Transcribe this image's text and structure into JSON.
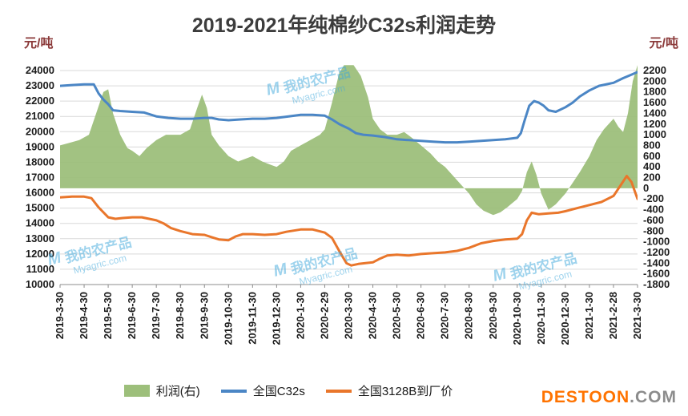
{
  "watermark": {
    "logo": "M",
    "brand": "我的农产品",
    "domain": "Myagric.com",
    "color": "#3fa8dc"
  },
  "footer_logo": {
    "name": "DESTOON",
    "suffix": ".COM",
    "name_color": "#ff7300",
    "suffix_color": "#8c8c8c"
  },
  "chart_data": {
    "type": "combo (area + line)",
    "title": "2019-2021年纯棉纱C32s利润走势",
    "grid": true,
    "legend_position": "bottom",
    "left_axis": {
      "unit": "元/吨",
      "min": 10000,
      "max": 24000,
      "step": 1000
    },
    "right_axis": {
      "unit": "元/吨",
      "min": -1800,
      "max": 2200,
      "step": 200
    },
    "x_axis": {
      "months": 24,
      "tick_labels": [
        "2019-3-30",
        "2019-4-30",
        "2019-5-30",
        "2019-6-30",
        "2019-7-30",
        "2019-8-30",
        "2019-9-30",
        "2019-10-30",
        "2019-11-30",
        "2019-12-30",
        "2020-1-30",
        "2020-2-29",
        "2020-3-30",
        "2020-4-30",
        "2020-5-30",
        "2020-6-30",
        "2020-7-30",
        "2020-8-30",
        "2020-9-30",
        "2020-10-30",
        "2020-11-30",
        "2020-12-30",
        "2021-1-30",
        "2021-2-28",
        "2021-3-30"
      ]
    },
    "series": [
      {
        "name": "利润(右)",
        "type": "area",
        "axis": "right",
        "color": "#9dbf7b",
        "points": [
          [
            0,
            800
          ],
          [
            0.4,
            850
          ],
          [
            0.8,
            900
          ],
          [
            1.2,
            1000
          ],
          [
            1.5,
            1400
          ],
          [
            1.8,
            1800
          ],
          [
            2,
            1850
          ],
          [
            2.2,
            1400
          ],
          [
            2.5,
            1000
          ],
          [
            2.8,
            750
          ],
          [
            3,
            700
          ],
          [
            3.3,
            600
          ],
          [
            3.6,
            750
          ],
          [
            4,
            900
          ],
          [
            4.4,
            1000
          ],
          [
            5,
            1000
          ],
          [
            5.4,
            1100
          ],
          [
            5.7,
            1500
          ],
          [
            5.9,
            1750
          ],
          [
            6.1,
            1500
          ],
          [
            6.3,
            1000
          ],
          [
            6.6,
            800
          ],
          [
            7,
            600
          ],
          [
            7.4,
            500
          ],
          [
            7.7,
            550
          ],
          [
            8,
            600
          ],
          [
            8.4,
            500
          ],
          [
            8.8,
            430
          ],
          [
            9,
            400
          ],
          [
            9.3,
            500
          ],
          [
            9.6,
            700
          ],
          [
            10,
            800
          ],
          [
            10.4,
            900
          ],
          [
            10.8,
            1000
          ],
          [
            11,
            1100
          ],
          [
            11.3,
            1600
          ],
          [
            11.6,
            2150
          ],
          [
            11.8,
            2300
          ],
          [
            12.2,
            2300
          ],
          [
            12.5,
            2100
          ],
          [
            12.8,
            1700
          ],
          [
            13,
            1300
          ],
          [
            13.3,
            1100
          ],
          [
            13.6,
            1000
          ],
          [
            14,
            1000
          ],
          [
            14.3,
            1050
          ],
          [
            14.6,
            950
          ],
          [
            15,
            800
          ],
          [
            15.4,
            650
          ],
          [
            15.7,
            500
          ],
          [
            16,
            400
          ],
          [
            16.3,
            250
          ],
          [
            16.6,
            100
          ],
          [
            17,
            -100
          ],
          [
            17.3,
            -300
          ],
          [
            17.6,
            -420
          ],
          [
            18,
            -500
          ],
          [
            18.3,
            -450
          ],
          [
            18.6,
            -350
          ],
          [
            19,
            -200
          ],
          [
            19.2,
            -50
          ],
          [
            19.4,
            300
          ],
          [
            19.6,
            500
          ],
          [
            19.8,
            250
          ],
          [
            20,
            -100
          ],
          [
            20.3,
            -400
          ],
          [
            20.6,
            -300
          ],
          [
            21,
            -100
          ],
          [
            21.3,
            100
          ],
          [
            21.6,
            300
          ],
          [
            22,
            600
          ],
          [
            22.3,
            900
          ],
          [
            22.6,
            1100
          ],
          [
            23,
            1300
          ],
          [
            23.2,
            1150
          ],
          [
            23.4,
            1050
          ],
          [
            23.6,
            1400
          ],
          [
            23.8,
            2000
          ],
          [
            24,
            2300
          ]
        ]
      },
      {
        "name": "全国C32s",
        "type": "line",
        "axis": "left",
        "color": "#4b86c5",
        "points": [
          [
            0,
            23000
          ],
          [
            0.5,
            23050
          ],
          [
            1,
            23100
          ],
          [
            1.4,
            23100
          ],
          [
            1.6,
            22500
          ],
          [
            1.8,
            22100
          ],
          [
            2,
            21800
          ],
          [
            2.2,
            21400
          ],
          [
            2.5,
            21350
          ],
          [
            3,
            21300
          ],
          [
            3.5,
            21250
          ],
          [
            3.8,
            21100
          ],
          [
            4,
            21000
          ],
          [
            4.5,
            20900
          ],
          [
            5,
            20850
          ],
          [
            5.5,
            20850
          ],
          [
            6,
            20900
          ],
          [
            6.3,
            20900
          ],
          [
            6.6,
            20800
          ],
          [
            7,
            20750
          ],
          [
            7.5,
            20800
          ],
          [
            8,
            20850
          ],
          [
            8.5,
            20850
          ],
          [
            9,
            20900
          ],
          [
            9.5,
            21000
          ],
          [
            10,
            21100
          ],
          [
            10.5,
            21100
          ],
          [
            11,
            21050
          ],
          [
            11.3,
            20800
          ],
          [
            11.6,
            20500
          ],
          [
            12,
            20200
          ],
          [
            12.3,
            19900
          ],
          [
            12.6,
            19800
          ],
          [
            13,
            19750
          ],
          [
            13.5,
            19650
          ],
          [
            14,
            19500
          ],
          [
            14.5,
            19450
          ],
          [
            15,
            19400
          ],
          [
            15.5,
            19350
          ],
          [
            16,
            19300
          ],
          [
            16.5,
            19300
          ],
          [
            17,
            19350
          ],
          [
            17.5,
            19400
          ],
          [
            18,
            19450
          ],
          [
            18.5,
            19500
          ],
          [
            19,
            19600
          ],
          [
            19.15,
            19900
          ],
          [
            19.3,
            20700
          ],
          [
            19.5,
            21700
          ],
          [
            19.7,
            22000
          ],
          [
            19.9,
            21900
          ],
          [
            20.1,
            21700
          ],
          [
            20.3,
            21400
          ],
          [
            20.6,
            21300
          ],
          [
            21,
            21600
          ],
          [
            21.3,
            21900
          ],
          [
            21.6,
            22300
          ],
          [
            22,
            22700
          ],
          [
            22.4,
            23000
          ],
          [
            23,
            23200
          ],
          [
            23.4,
            23500
          ],
          [
            23.7,
            23700
          ],
          [
            24,
            23900
          ]
        ]
      },
      {
        "name": "全国3128B到厂价",
        "type": "line",
        "axis": "left",
        "color": "#e9762b",
        "points": [
          [
            0,
            15700
          ],
          [
            0.5,
            15750
          ],
          [
            1,
            15750
          ],
          [
            1.3,
            15650
          ],
          [
            1.6,
            15050
          ],
          [
            2,
            14400
          ],
          [
            2.3,
            14300
          ],
          [
            2.6,
            14350
          ],
          [
            3,
            14400
          ],
          [
            3.4,
            14400
          ],
          [
            3.7,
            14300
          ],
          [
            4,
            14200
          ],
          [
            4.3,
            14000
          ],
          [
            4.6,
            13700
          ],
          [
            5,
            13500
          ],
          [
            5.5,
            13300
          ],
          [
            6,
            13250
          ],
          [
            6.3,
            13100
          ],
          [
            6.6,
            12950
          ],
          [
            7,
            12900
          ],
          [
            7.3,
            13150
          ],
          [
            7.6,
            13300
          ],
          [
            8,
            13300
          ],
          [
            8.5,
            13250
          ],
          [
            9,
            13300
          ],
          [
            9.4,
            13450
          ],
          [
            10,
            13600
          ],
          [
            10.5,
            13600
          ],
          [
            11,
            13400
          ],
          [
            11.3,
            13050
          ],
          [
            11.6,
            12200
          ],
          [
            11.9,
            11400
          ],
          [
            12.1,
            11250
          ],
          [
            12.4,
            11350
          ],
          [
            13,
            11450
          ],
          [
            13.3,
            11700
          ],
          [
            13.6,
            11900
          ],
          [
            14,
            11950
          ],
          [
            14.5,
            11900
          ],
          [
            15,
            12000
          ],
          [
            15.5,
            12050
          ],
          [
            16,
            12100
          ],
          [
            16.5,
            12200
          ],
          [
            17,
            12400
          ],
          [
            17.5,
            12700
          ],
          [
            18,
            12850
          ],
          [
            18.5,
            12950
          ],
          [
            19,
            13000
          ],
          [
            19.2,
            13300
          ],
          [
            19.4,
            14200
          ],
          [
            19.6,
            14700
          ],
          [
            19.9,
            14600
          ],
          [
            20.3,
            14650
          ],
          [
            20.7,
            14700
          ],
          [
            21,
            14800
          ],
          [
            21.5,
            15000
          ],
          [
            22,
            15200
          ],
          [
            22.5,
            15400
          ],
          [
            23,
            15800
          ],
          [
            23.3,
            16500
          ],
          [
            23.55,
            17100
          ],
          [
            23.75,
            16700
          ],
          [
            24,
            15600
          ]
        ]
      }
    ]
  }
}
